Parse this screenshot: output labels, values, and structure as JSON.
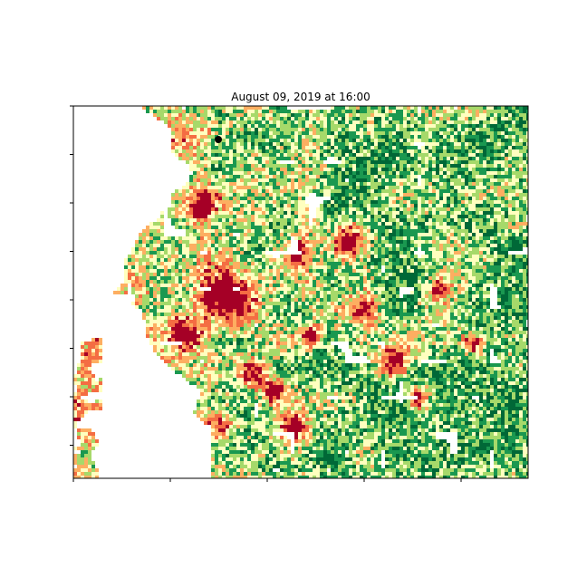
{
  "chart_data": {
    "type": "heatmap",
    "title": "August 09, 2019 at 16:00",
    "xlabel": "",
    "ylabel": "",
    "x_tick_count": 5,
    "y_tick_count": 8,
    "tick_labels_shown": false,
    "colormap": "RdYlGn (reversed)",
    "grid": false,
    "legend": "none",
    "colors": {
      "very_low": "#006837",
      "low": "#1a9850",
      "mid_low": "#a6d96a",
      "mid": "#ffffbf",
      "mid_high": "#fdae61",
      "high": "#f46d43",
      "very_high": "#a50026",
      "no_data": "#ffffff"
    },
    "hotspots_description": "dense red clusters in center-left and center; green/yellow speckle in east; white no-data area on west edge",
    "marker": {
      "color": "#000000",
      "shape": "dot"
    }
  }
}
